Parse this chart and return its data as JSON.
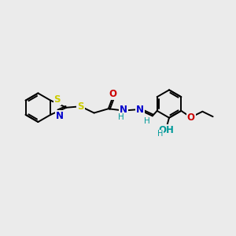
{
  "bg_color": "#ebebeb",
  "bond_color": "#000000",
  "lw": 1.4,
  "atom_colors": {
    "S": "#cccc00",
    "N": "#0000cc",
    "O": "#cc0000",
    "OH": "#009999",
    "H": "#009999",
    "C": "#000000"
  },
  "fs": 8.5,
  "fig_w": 3.0,
  "fig_h": 3.0,
  "dpi": 100
}
